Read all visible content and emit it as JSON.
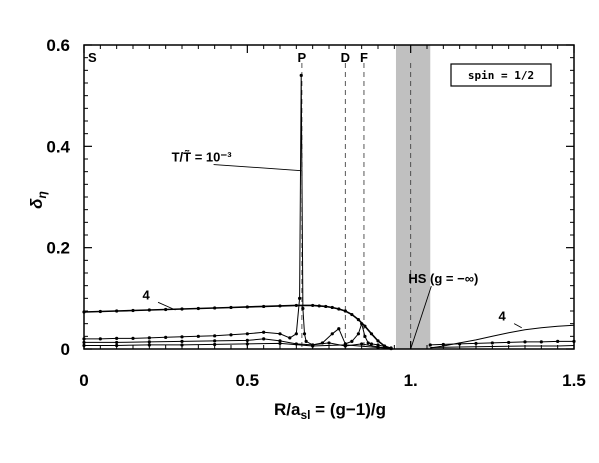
{
  "chart_data": {
    "type": "line",
    "title": "",
    "xlabel": "R/a",
    "xlabel_sub": "sl",
    "xlabel_rest": " = (g−1)/g",
    "ylabel": "δ",
    "ylabel_sub": "η",
    "xlim": [
      0,
      1.5
    ],
    "ylim": [
      0,
      0.6
    ],
    "xticks": [
      0,
      0.5,
      1,
      1.5
    ],
    "xtick_labels": [
      "0",
      "0.5",
      "1.",
      "1.5"
    ],
    "yticks": [
      0,
      0.2,
      0.4,
      0.6
    ],
    "ytick_labels": [
      "0",
      "0.2",
      "0.4",
      "0.6"
    ],
    "grid": false,
    "legend_box": {
      "text": "spin = 1/2",
      "placement": "top-right"
    },
    "shaded_band": [
      0.955,
      1.06
    ],
    "shaded_color": "#c0c0c0",
    "vertical_markers": [
      {
        "label": "S",
        "x": 0.0,
        "dashed": false
      },
      {
        "label": "P",
        "x": 0.667,
        "dashed": true
      },
      {
        "label": "D",
        "x": 0.8,
        "dashed": true
      },
      {
        "label": "F",
        "x": 0.857,
        "dashed": true
      },
      {
        "label": "",
        "x": 1.0,
        "dashed": true
      }
    ],
    "annotations": [
      {
        "text": "T/T̃ = 10⁻³",
        "x": 0.665,
        "y": 0.352,
        "tx": 0.36,
        "ty": 0.37
      },
      {
        "text": "4",
        "x": 0.28,
        "y": 0.077,
        "tx": 0.19,
        "ty": 0.098
      },
      {
        "text": "HS (g = −∞)",
        "x": 1.0,
        "y": 0.0,
        "tx": 1.1,
        "ty": 0.13
      },
      {
        "text": "4",
        "x": 1.34,
        "y": 0.042,
        "tx": 1.28,
        "ty": 0.056
      }
    ],
    "series": [
      {
        "dotted": true,
        "x": [
          0,
          0.05,
          0.1,
          0.15,
          0.2,
          0.25,
          0.3,
          0.35,
          0.4,
          0.45,
          0.5,
          0.55,
          0.6,
          0.65,
          0.7,
          0.72,
          0.74,
          0.76,
          0.78,
          0.8,
          0.82,
          0.84,
          0.86,
          0.88,
          0.9,
          0.92,
          0.94
        ],
        "y": [
          0.073,
          0.074,
          0.075,
          0.076,
          0.077,
          0.078,
          0.079,
          0.08,
          0.081,
          0.082,
          0.083,
          0.084,
          0.085,
          0.086,
          0.086,
          0.085,
          0.084,
          0.082,
          0.079,
          0.075,
          0.068,
          0.058,
          0.045,
          0.03,
          0.016,
          0.006,
          0.001
        ]
      },
      {
        "dotted": true,
        "x": [
          0,
          0.05,
          0.1,
          0.15,
          0.2,
          0.25,
          0.3,
          0.35,
          0.4,
          0.45,
          0.5,
          0.55,
          0.6,
          0.63,
          0.65,
          0.66,
          0.665,
          0.67,
          0.675,
          0.68,
          0.7,
          0.73,
          0.76,
          0.78,
          0.8,
          0.82,
          0.84,
          0.85,
          0.86,
          0.87,
          0.88,
          0.9,
          0.92,
          0.94
        ],
        "y": [
          0.02,
          0.02,
          0.021,
          0.021,
          0.022,
          0.023,
          0.024,
          0.025,
          0.026,
          0.028,
          0.03,
          0.033,
          0.03,
          0.022,
          0.03,
          0.1,
          0.54,
          0.08,
          0.03,
          0.015,
          0.008,
          0.012,
          0.03,
          0.04,
          0.01,
          0.015,
          0.03,
          0.05,
          0.025,
          0.012,
          0.01,
          0.008,
          0.005,
          0.002
        ]
      },
      {
        "dotted": true,
        "x": [
          0,
          0.1,
          0.2,
          0.3,
          0.4,
          0.5,
          0.55,
          0.6,
          0.65,
          0.7,
          0.75,
          0.8,
          0.85,
          0.9,
          0.94
        ],
        "y": [
          0.013,
          0.013,
          0.014,
          0.015,
          0.016,
          0.017,
          0.02,
          0.016,
          0.01,
          0.008,
          0.012,
          0.006,
          0.01,
          0.004,
          0.001
        ]
      },
      {
        "dotted": true,
        "x": [
          0,
          0.1,
          0.2,
          0.3,
          0.4,
          0.5,
          0.6,
          0.7,
          0.8,
          0.9,
          0.94
        ],
        "y": [
          0.007,
          0.007,
          0.008,
          0.008,
          0.009,
          0.01,
          0.011,
          0.006,
          0.008,
          0.003,
          0.001
        ]
      },
      {
        "dotted": false,
        "x": [
          1.06,
          1.1,
          1.15,
          1.2,
          1.25,
          1.3,
          1.35,
          1.4,
          1.45,
          1.5
        ],
        "y": [
          0.002,
          0.006,
          0.012,
          0.018,
          0.025,
          0.032,
          0.038,
          0.042,
          0.045,
          0.047
        ]
      },
      {
        "dotted": true,
        "x": [
          1.06,
          1.1,
          1.15,
          1.2,
          1.25,
          1.3,
          1.35,
          1.4,
          1.45,
          1.5
        ],
        "y": [
          0.008,
          0.009,
          0.01,
          0.011,
          0.012,
          0.013,
          0.014,
          0.014,
          0.015,
          0.015
        ]
      },
      {
        "dotted": false,
        "x": [
          1.06,
          1.15,
          1.25,
          1.35,
          1.45,
          1.5
        ],
        "y": [
          0.003,
          0.004,
          0.005,
          0.006,
          0.006,
          0.007
        ]
      }
    ]
  }
}
